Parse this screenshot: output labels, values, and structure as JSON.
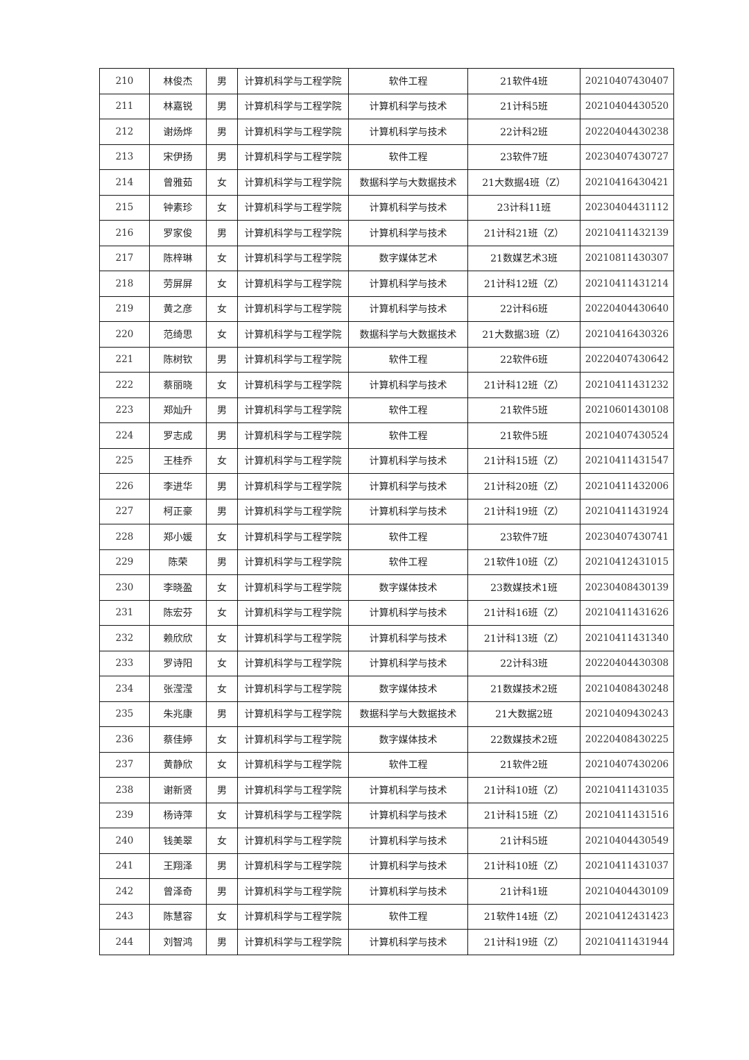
{
  "table": {
    "rows": [
      [
        "210",
        "林俊杰",
        "男",
        "计算机科学与工程学院",
        "软件工程",
        "21软件4班",
        "20210407430407"
      ],
      [
        "211",
        "林嘉锐",
        "男",
        "计算机科学与工程学院",
        "计算机科学与技术",
        "21计科5班",
        "20210404430520"
      ],
      [
        "212",
        "谢炀烨",
        "男",
        "计算机科学与工程学院",
        "计算机科学与技术",
        "22计科2班",
        "20220404430238"
      ],
      [
        "213",
        "宋伊扬",
        "男",
        "计算机科学与工程学院",
        "软件工程",
        "23软件7班",
        "20230407430727"
      ],
      [
        "214",
        "曾雅茹",
        "女",
        "计算机科学与工程学院",
        "数据科学与大数据技术",
        "21大数据4班（Z）",
        "20210416430421"
      ],
      [
        "215",
        "钟素珍",
        "女",
        "计算机科学与工程学院",
        "计算机科学与技术",
        "23计科11班",
        "20230404431112"
      ],
      [
        "216",
        "罗家俊",
        "男",
        "计算机科学与工程学院",
        "计算机科学与技术",
        "21计科21班（Z）",
        "20210411432139"
      ],
      [
        "217",
        "陈梓琳",
        "女",
        "计算机科学与工程学院",
        "数字媒体艺术",
        "21数媒艺术3班",
        "20210811430307"
      ],
      [
        "218",
        "劳屏屏",
        "女",
        "计算机科学与工程学院",
        "计算机科学与技术",
        "21计科12班（Z）",
        "20210411431214"
      ],
      [
        "219",
        "黄之彦",
        "女",
        "计算机科学与工程学院",
        "计算机科学与技术",
        "22计科6班",
        "20220404430640"
      ],
      [
        "220",
        "范绮思",
        "女",
        "计算机科学与工程学院",
        "数据科学与大数据技术",
        "21大数据3班（Z）",
        "20210416430326"
      ],
      [
        "221",
        "陈树钦",
        "男",
        "计算机科学与工程学院",
        "软件工程",
        "22软件6班",
        "20220407430642"
      ],
      [
        "222",
        "蔡丽晓",
        "女",
        "计算机科学与工程学院",
        "计算机科学与技术",
        "21计科12班（Z）",
        "20210411431232"
      ],
      [
        "223",
        "郑灿升",
        "男",
        "计算机科学与工程学院",
        "软件工程",
        "21软件5班",
        "20210601430108"
      ],
      [
        "224",
        "罗志成",
        "男",
        "计算机科学与工程学院",
        "软件工程",
        "21软件5班",
        "20210407430524"
      ],
      [
        "225",
        "王桂乔",
        "女",
        "计算机科学与工程学院",
        "计算机科学与技术",
        "21计科15班（Z）",
        "20210411431547"
      ],
      [
        "226",
        "李进华",
        "男",
        "计算机科学与工程学院",
        "计算机科学与技术",
        "21计科20班（Z）",
        "20210411432006"
      ],
      [
        "227",
        "柯正豪",
        "男",
        "计算机科学与工程学院",
        "计算机科学与技术",
        "21计科19班（Z）",
        "20210411431924"
      ],
      [
        "228",
        "郑小媛",
        "女",
        "计算机科学与工程学院",
        "软件工程",
        "23软件7班",
        "20230407430741"
      ],
      [
        "229",
        "陈荣",
        "男",
        "计算机科学与工程学院",
        "软件工程",
        "21软件10班（Z）",
        "20210412431015"
      ],
      [
        "230",
        "李晓盈",
        "女",
        "计算机科学与工程学院",
        "数字媒体技术",
        "23数媒技术1班",
        "20230408430139"
      ],
      [
        "231",
        "陈宏芬",
        "女",
        "计算机科学与工程学院",
        "计算机科学与技术",
        "21计科16班（Z）",
        "20210411431626"
      ],
      [
        "232",
        "赖欣欣",
        "女",
        "计算机科学与工程学院",
        "计算机科学与技术",
        "21计科13班（Z）",
        "20210411431340"
      ],
      [
        "233",
        "罗诗阳",
        "女",
        "计算机科学与工程学院",
        "计算机科学与技术",
        "22计科3班",
        "20220404430308"
      ],
      [
        "234",
        "张滢滢",
        "女",
        "计算机科学与工程学院",
        "数字媒体技术",
        "21数媒技术2班",
        "20210408430248"
      ],
      [
        "235",
        "朱兆康",
        "男",
        "计算机科学与工程学院",
        "数据科学与大数据技术",
        "21大数据2班",
        "20210409430243"
      ],
      [
        "236",
        "蔡佳婷",
        "女",
        "计算机科学与工程学院",
        "数字媒体技术",
        "22数媒技术2班",
        "20220408430225"
      ],
      [
        "237",
        "黄静欣",
        "女",
        "计算机科学与工程学院",
        "软件工程",
        "21软件2班",
        "20210407430206"
      ],
      [
        "238",
        "谢新贤",
        "男",
        "计算机科学与工程学院",
        "计算机科学与技术",
        "21计科10班（Z）",
        "20210411431035"
      ],
      [
        "239",
        "杨诗萍",
        "女",
        "计算机科学与工程学院",
        "计算机科学与技术",
        "21计科15班（Z）",
        "20210411431516"
      ],
      [
        "240",
        "钱美翠",
        "女",
        "计算机科学与工程学院",
        "计算机科学与技术",
        "21计科5班",
        "20210404430549"
      ],
      [
        "241",
        "王翔泽",
        "男",
        "计算机科学与工程学院",
        "计算机科学与技术",
        "21计科10班（Z）",
        "20210411431037"
      ],
      [
        "242",
        "曾泽奇",
        "男",
        "计算机科学与工程学院",
        "计算机科学与技术",
        "21计科1班",
        "20210404430109"
      ],
      [
        "243",
        "陈慧容",
        "女",
        "计算机科学与工程学院",
        "软件工程",
        "21软件14班（Z）",
        "20210412431423"
      ],
      [
        "244",
        "刘智鸿",
        "男",
        "计算机科学与工程学院",
        "计算机科学与技术",
        "21计科19班（Z）",
        "20210411431944"
      ]
    ]
  }
}
